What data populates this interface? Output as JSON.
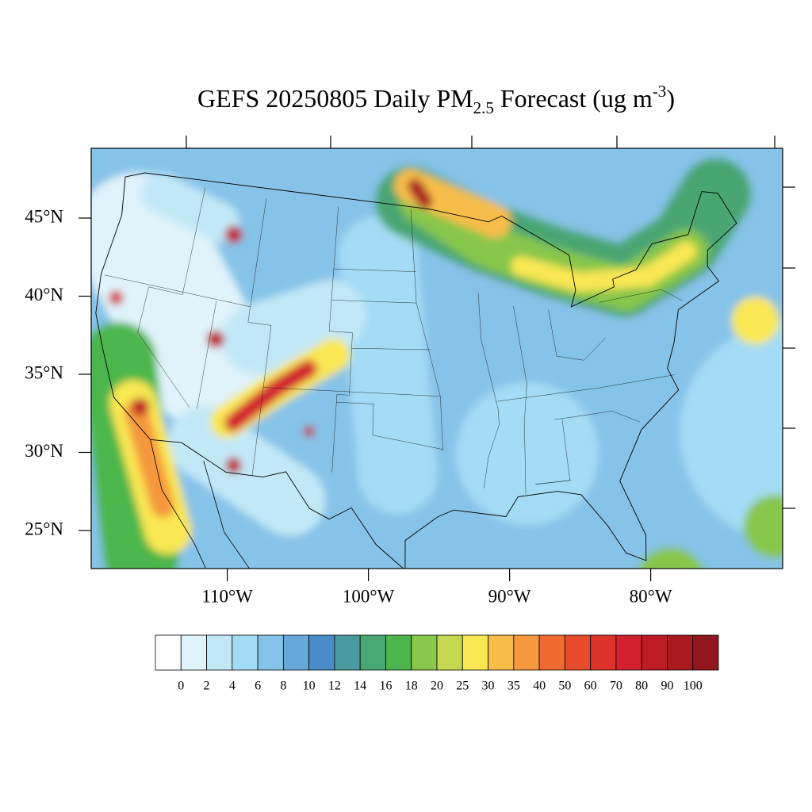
{
  "title": {
    "prefix": "GEFS 20250805 Daily PM",
    "subscript": "2.5",
    "middle": " Forecast (ug m",
    "superscript": "-3",
    "suffix": ")"
  },
  "map": {
    "lat_ticks": [
      {
        "value": 45,
        "label": "45°N"
      },
      {
        "value": 40,
        "label": "40°N"
      },
      {
        "value": 35,
        "label": "35°N"
      },
      {
        "value": 30,
        "label": "30°N"
      },
      {
        "value": 25,
        "label": "25°N"
      }
    ],
    "lon_ticks": [
      {
        "value": -110,
        "label": "110°W"
      },
      {
        "value": -100,
        "label": "100°W"
      },
      {
        "value": -90,
        "label": "90°W"
      },
      {
        "value": -80,
        "label": "80°W"
      }
    ]
  },
  "colorbar": {
    "levels": [
      0,
      2,
      4,
      6,
      8,
      10,
      12,
      14,
      16,
      18,
      20,
      25,
      30,
      35,
      40,
      50,
      60,
      70,
      80,
      90,
      100
    ],
    "colors": [
      "#ffffff",
      "#e0f3fb",
      "#c2e8f7",
      "#a3dcf4",
      "#86c3e8",
      "#67a8db",
      "#4a8cc8",
      "#4a9aa0",
      "#4aa672",
      "#4cb64c",
      "#88c64c",
      "#c3d750",
      "#f9e753",
      "#f7bd4a",
      "#f5983e",
      "#f06b30",
      "#e64c2c",
      "#dc322a",
      "#d32030",
      "#bd1c26",
      "#a81a20",
      "#8e161c"
    ]
  }
}
